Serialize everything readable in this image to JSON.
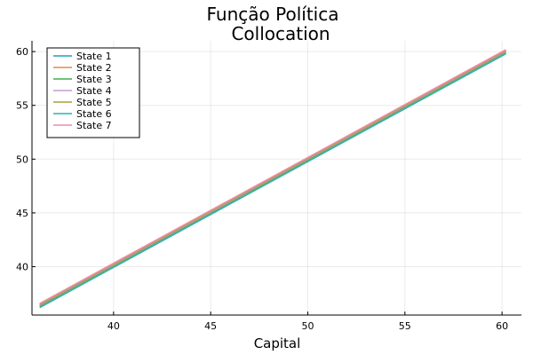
{
  "chart_data": {
    "type": "line",
    "title": [
      "Função Política",
      "Collocation"
    ],
    "xlabel": "Capital",
    "ylabel": "",
    "xlim": [
      35.8,
      61.0
    ],
    "ylim": [
      35.5,
      61.0
    ],
    "xticks": [
      40,
      45,
      50,
      55,
      60
    ],
    "yticks": [
      40,
      45,
      50,
      55,
      60
    ],
    "grid": true,
    "legend": "top-left",
    "series": [
      {
        "name": "State 1",
        "color": "#1f9fbf",
        "x": [
          36.2,
          60.2
        ],
        "y": [
          36.25,
          59.85
        ]
      },
      {
        "name": "State 2",
        "color": "#e08c55",
        "x": [
          36.2,
          60.2
        ],
        "y": [
          36.32,
          59.92
        ]
      },
      {
        "name": "State 3",
        "color": "#3fb04a",
        "x": [
          36.2,
          60.2
        ],
        "y": [
          36.38,
          59.98
        ]
      },
      {
        "name": "State 4",
        "color": "#c39bd3",
        "x": [
          36.2,
          60.2
        ],
        "y": [
          36.44,
          60.04
        ]
      },
      {
        "name": "State 5",
        "color": "#a8a03a",
        "x": [
          36.2,
          60.2
        ],
        "y": [
          36.5,
          60.1
        ]
      },
      {
        "name": "State 6",
        "color": "#2ab3b3",
        "x": [
          36.2,
          60.2
        ],
        "y": [
          36.2,
          59.8
        ]
      },
      {
        "name": "State 7",
        "color": "#f28aa8",
        "x": [
          36.2,
          60.2
        ],
        "y": [
          36.58,
          60.18
        ]
      }
    ]
  }
}
